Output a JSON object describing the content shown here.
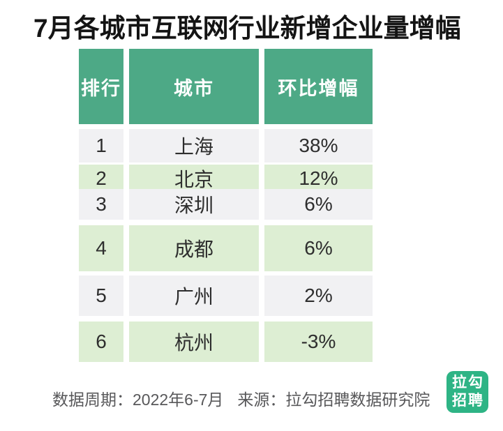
{
  "title": "7月各城市互联网行业新增企业量增幅",
  "table": {
    "headers": [
      "排行",
      "城市",
      "环比增幅"
    ],
    "rows": [
      {
        "rank": "1",
        "city": "上海",
        "growth": "38%"
      },
      {
        "rank": "2",
        "city": "北京",
        "growth": "12%"
      },
      {
        "rank": "3",
        "city": "深圳",
        "growth": "6%"
      },
      {
        "rank": "4",
        "city": "成都",
        "growth": "6%"
      },
      {
        "rank": "5",
        "city": "广州",
        "growth": "2%"
      },
      {
        "rank": "6",
        "city": "杭州",
        "growth": "-3%"
      }
    ]
  },
  "footer": {
    "period": "数据周期：2022年6-7月",
    "source": "来源：拉勾招聘数据研究院",
    "logo_line1": "拉勾",
    "logo_line2": "招聘"
  },
  "colors": {
    "header_green": "#4da986",
    "row_green": "#ddeed3",
    "row_gray": "#f1f1f3",
    "logo_green": "#2eb485",
    "title_text": "#141414",
    "body_text": "#2e2e2e",
    "footer_text": "#58585a"
  },
  "chart_data": {
    "type": "table",
    "title": "7月各城市互联网行业新增企业量增幅",
    "columns": [
      "排行",
      "城市",
      "环比增幅"
    ],
    "rows": [
      [
        1,
        "上海",
        "38%"
      ],
      [
        2,
        "北京",
        "12%"
      ],
      [
        3,
        "深圳",
        "6%"
      ],
      [
        4,
        "成都",
        "6%"
      ],
      [
        5,
        "广州",
        "2%"
      ],
      [
        6,
        "杭州",
        "-3%"
      ]
    ],
    "growth_values_pct": [
      38,
      12,
      6,
      6,
      2,
      -3
    ],
    "data_period": "2022年6-7月",
    "source": "拉勾招聘数据研究院"
  }
}
